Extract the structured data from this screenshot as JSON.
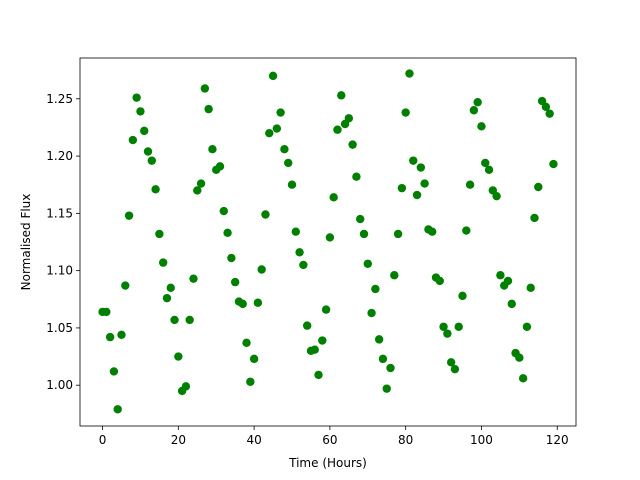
{
  "chart_data": {
    "type": "scatter",
    "xlabel": "Time (Hours)",
    "ylabel": "Normalised Flux",
    "x": [
      0,
      1,
      2,
      3,
      4,
      5,
      6,
      7,
      8,
      9,
      10,
      11,
      12,
      13,
      14,
      15,
      16,
      17,
      18,
      19,
      20,
      21,
      22,
      23,
      24,
      25,
      26,
      27,
      28,
      29,
      30,
      31,
      32,
      33,
      34,
      35,
      36,
      37,
      38,
      39,
      40,
      41,
      42,
      43,
      44,
      45,
      46,
      47,
      48,
      49,
      50,
      51,
      52,
      53,
      54,
      55,
      56,
      57,
      58,
      59,
      60,
      61,
      62,
      63,
      64,
      65,
      66,
      67,
      68,
      69,
      70,
      71,
      72,
      73,
      74,
      75,
      76,
      77,
      78,
      79,
      80,
      81,
      82,
      83,
      84,
      85,
      86,
      87,
      88,
      89,
      90,
      91,
      92,
      93,
      94,
      95,
      96,
      97,
      98,
      99,
      100,
      101,
      102,
      103,
      104,
      105,
      106,
      107,
      108,
      109,
      110,
      111,
      112,
      113,
      114,
      115,
      116,
      117,
      118,
      119
    ],
    "values": [
      1.064,
      1.064,
      1.042,
      1.012,
      0.979,
      1.044,
      1.087,
      1.148,
      1.214,
      1.251,
      1.239,
      1.222,
      1.204,
      1.196,
      1.171,
      1.132,
      1.107,
      1.076,
      1.085,
      1.057,
      1.025,
      0.995,
      0.999,
      1.057,
      1.093,
      1.17,
      1.176,
      1.259,
      1.241,
      1.206,
      1.188,
      1.191,
      1.152,
      1.133,
      1.111,
      1.09,
      1.073,
      1.071,
      1.037,
      1.003,
      1.023,
      1.072,
      1.101,
      1.149,
      1.22,
      1.27,
      1.224,
      1.238,
      1.206,
      1.194,
      1.175,
      1.134,
      1.116,
      1.105,
      1.052,
      1.03,
      1.031,
      1.009,
      1.039,
      1.066,
      1.129,
      1.164,
      1.223,
      1.253,
      1.228,
      1.233,
      1.21,
      1.182,
      1.145,
      1.132,
      1.106,
      1.063,
      1.084,
      1.04,
      1.023,
      0.997,
      1.015,
      1.096,
      1.132,
      1.172,
      1.238,
      1.272,
      1.196,
      1.166,
      1.19,
      1.176,
      1.136,
      1.134,
      1.094,
      1.091,
      1.051,
      1.045,
      1.02,
      1.014,
      1.051,
      1.078,
      1.135,
      1.175,
      1.24,
      1.247,
      1.226,
      1.194,
      1.188,
      1.17,
      1.165,
      1.096,
      1.087,
      1.091,
      1.071,
      1.028,
      1.024,
      1.006,
      1.051,
      1.085,
      1.146,
      1.173,
      1.248,
      1.243,
      1.237,
      1.193
    ],
    "color": "#008000",
    "xlim": [
      -5.95,
      124.95
    ],
    "xticks": [
      0,
      20,
      40,
      60,
      80,
      100,
      120
    ],
    "ylim": [
      0.9644,
      1.2856
    ],
    "yticks": [
      {
        "value": 1,
        "label": "1.00"
      },
      1.05,
      {
        "value": 1.1,
        "label": "1.10"
      },
      1.15,
      {
        "value": 1.2,
        "label": "1.20"
      },
      1.25
    ],
    "grid": false
  }
}
